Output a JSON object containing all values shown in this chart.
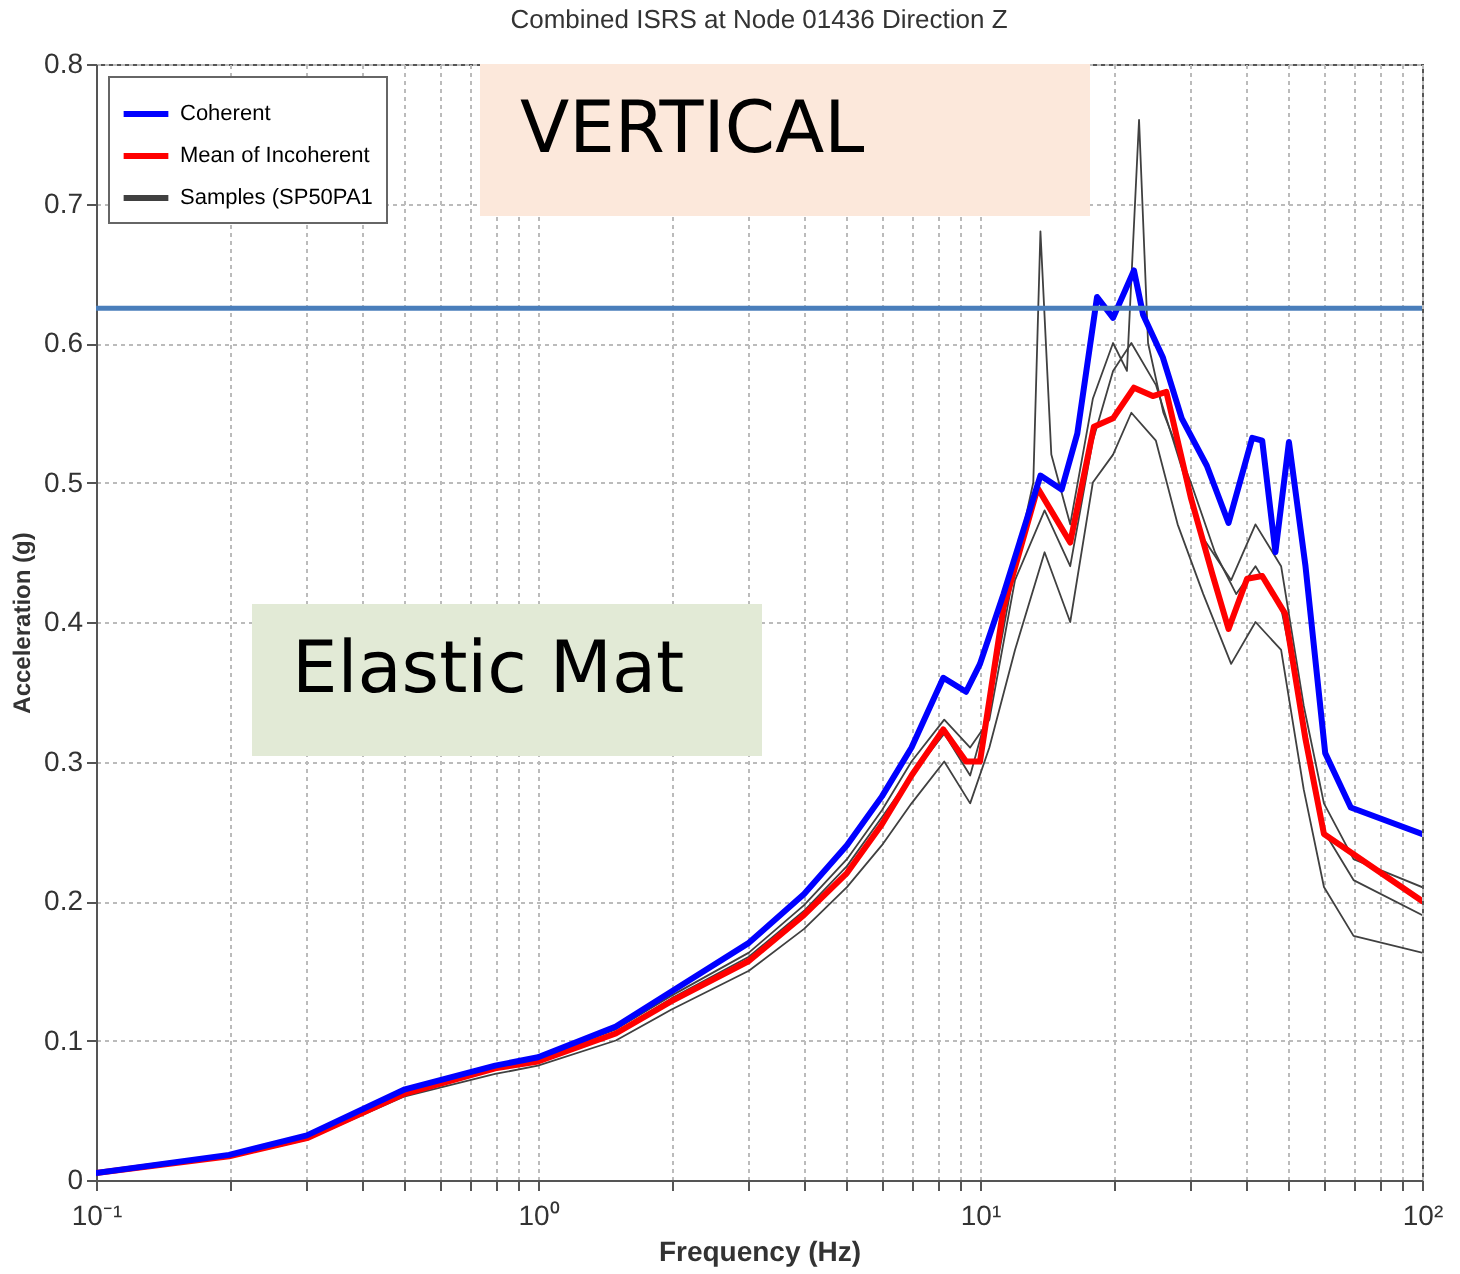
{
  "chart_data": {
    "type": "line",
    "title": "Combined ISRS at Node 01436 Direction Z",
    "xlabel": "Frequency (Hz)",
    "ylabel": "Acceleration (g)",
    "log": "x",
    "grid": true,
    "legend": "top left",
    "marker": "none",
    "line_style": "solid",
    "xlim": [
      0.1,
      100
    ],
    "ylim": [
      0,
      0.8
    ],
    "xticks": [
      {
        "value": 0.1,
        "label": "10⁻¹"
      },
      {
        "value": 0.2,
        "label": null
      },
      {
        "value": 0.3,
        "label": null
      },
      {
        "value": 0.4,
        "label": null
      },
      {
        "value": 0.5,
        "label": null
      },
      {
        "value": 0.6,
        "label": null
      },
      {
        "value": 0.7,
        "label": null
      },
      {
        "value": 0.8,
        "label": null
      },
      {
        "value": 0.9,
        "label": null
      },
      {
        "value": 1,
        "label": "10⁰"
      },
      {
        "value": 2,
        "label": null
      },
      {
        "value": 3,
        "label": null
      },
      {
        "value": 4,
        "label": null
      },
      {
        "value": 5,
        "label": null
      },
      {
        "value": 6,
        "label": null
      },
      {
        "value": 7,
        "label": null
      },
      {
        "value": 8,
        "label": null
      },
      {
        "value": 9,
        "label": null
      },
      {
        "value": 10,
        "label": "10¹"
      },
      {
        "value": 20,
        "label": null
      },
      {
        "value": 30,
        "label": null
      },
      {
        "value": 40,
        "label": null
      },
      {
        "value": 50,
        "label": null
      },
      {
        "value": 60,
        "label": null
      },
      {
        "value": 70,
        "label": null
      },
      {
        "value": 80,
        "label": null
      },
      {
        "value": 90,
        "label": null
      },
      {
        "value": 100,
        "label": "10²"
      }
    ],
    "yticks": [
      0,
      0.1,
      0.2,
      0.3,
      0.4,
      0.5,
      0.6,
      0.7,
      0.8
    ],
    "ref_lines": [
      {
        "axis": "y",
        "value": 0.625,
        "color": "#4a7ebb"
      }
    ],
    "annotations": [
      "VERTICAL",
      "Elastic Mat"
    ],
    "series": [
      {
        "name": "Coherent",
        "color": "#0000ff",
        "x": [
          0.1,
          0.2,
          0.3,
          0.5,
          0.8,
          1,
          1.5,
          2,
          3,
          4,
          5,
          6,
          7,
          8.26,
          9.3,
          10,
          11.3,
          13.7,
          15.3,
          16.6,
          18.4,
          20,
          22.3,
          23.4,
          25.9,
          28.6,
          32.6,
          36.5,
          41.3,
          43.5,
          46.6,
          50,
          54.5,
          60.4,
          69,
          100
        ],
        "values": [
          0.005,
          0.018,
          0.032,
          0.065,
          0.082,
          0.088,
          0.11,
          0.135,
          0.17,
          0.205,
          0.24,
          0.275,
          0.31,
          0.36,
          0.35,
          0.37,
          0.42,
          0.505,
          0.495,
          0.535,
          0.633,
          0.618,
          0.652,
          0.62,
          0.59,
          0.546,
          0.512,
          0.471,
          0.532,
          0.53,
          0.45,
          0.529,
          0.44,
          0.306,
          0.267,
          0.248
        ]
      },
      {
        "name": "Mean of Incoherent",
        "color": "#ff0000",
        "x": [
          0.1,
          0.2,
          0.3,
          0.5,
          0.8,
          1,
          1.5,
          2,
          3,
          4,
          5,
          6,
          7,
          8.26,
          9.3,
          10,
          11.3,
          13.5,
          16,
          18.1,
          20,
          22.3,
          24.6,
          26.4,
          30,
          33.5,
          36.5,
          40.2,
          43.5,
          49,
          54.5,
          60,
          100
        ],
        "values": [
          0.005,
          0.017,
          0.03,
          0.062,
          0.08,
          0.085,
          0.105,
          0.128,
          0.157,
          0.19,
          0.22,
          0.255,
          0.29,
          0.323,
          0.3,
          0.3,
          0.41,
          0.496,
          0.457,
          0.54,
          0.546,
          0.568,
          0.562,
          0.565,
          0.489,
          0.435,
          0.395,
          0.431,
          0.433,
          0.406,
          0.316,
          0.248,
          0.2
        ]
      },
      {
        "name": "Samples (SP50PA1",
        "color": "#404040",
        "x": [
          0.1,
          0.2,
          0.3,
          0.5,
          0.8,
          1,
          1.5,
          2,
          3,
          4,
          5,
          6,
          7,
          8.3,
          9.5,
          10.5,
          12,
          13.2,
          13.7,
          14.5,
          16,
          18,
          20,
          21.5,
          22.9,
          24,
          26,
          30,
          34,
          38,
          42,
          48,
          54,
          60,
          70,
          100
        ],
        "values": [
          0.005,
          0.017,
          0.03,
          0.063,
          0.081,
          0.086,
          0.106,
          0.13,
          0.16,
          0.193,
          0.225,
          0.26,
          0.29,
          0.32,
          0.29,
          0.34,
          0.44,
          0.5,
          0.68,
          0.52,
          0.47,
          0.56,
          0.6,
          0.58,
          0.76,
          0.6,
          0.55,
          0.5,
          0.45,
          0.42,
          0.44,
          0.41,
          0.33,
          0.25,
          0.215,
          0.19
        ]
      },
      {
        "color": "#404040",
        "x": [
          0.1,
          0.2,
          0.3,
          0.5,
          0.8,
          1,
          1.5,
          2,
          3,
          4,
          5,
          6,
          7,
          8.3,
          9.5,
          10.5,
          12,
          14,
          16,
          18,
          20,
          22,
          25,
          28,
          32,
          37,
          42,
          48,
          54,
          60,
          70,
          100
        ],
        "values": [
          0.005,
          0.016,
          0.029,
          0.06,
          0.076,
          0.082,
          0.1,
          0.122,
          0.15,
          0.18,
          0.21,
          0.24,
          0.27,
          0.3,
          0.27,
          0.31,
          0.38,
          0.45,
          0.4,
          0.5,
          0.52,
          0.55,
          0.53,
          0.47,
          0.42,
          0.37,
          0.4,
          0.38,
          0.28,
          0.21,
          0.175,
          0.163
        ]
      },
      {
        "color": "#404040",
        "x": [
          0.1,
          0.2,
          0.3,
          0.5,
          0.8,
          1,
          1.5,
          2,
          3,
          4,
          5,
          6,
          7,
          8.3,
          9.5,
          10.5,
          12,
          14,
          16,
          18,
          20,
          22,
          25,
          28,
          32,
          37,
          42,
          48,
          54,
          60,
          70,
          100
        ],
        "values": [
          0.005,
          0.017,
          0.031,
          0.064,
          0.082,
          0.087,
          0.108,
          0.132,
          0.163,
          0.197,
          0.23,
          0.265,
          0.3,
          0.33,
          0.31,
          0.33,
          0.43,
          0.48,
          0.44,
          0.53,
          0.58,
          0.6,
          0.57,
          0.52,
          0.46,
          0.43,
          0.47,
          0.44,
          0.34,
          0.27,
          0.23,
          0.21
        ]
      }
    ]
  }
}
